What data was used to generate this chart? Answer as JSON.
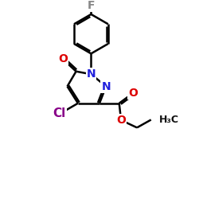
{
  "bg_color": "#ffffff",
  "N_color": "#2020dd",
  "O_color": "#dd0000",
  "F_color": "#888888",
  "Cl_color": "#880088",
  "bond_color": "#000000",
  "bond_lw": 1.8,
  "font_size": 10,
  "figsize": [
    2.5,
    2.5
  ],
  "dpi": 100,
  "xlim": [
    0,
    10
  ],
  "ylim": [
    0,
    10
  ]
}
